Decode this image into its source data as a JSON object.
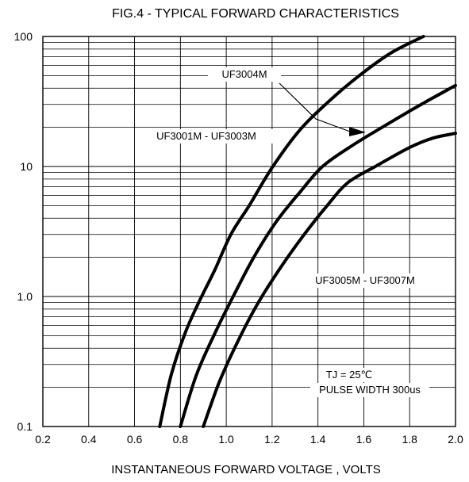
{
  "chart_data": {
    "type": "line",
    "title": "FIG.4 - TYPICAL FORWARD CHARACTERISTICS",
    "xlabel": "INSTANTANEOUS FORWARD VOLTAGE , VOLTS",
    "ylabel": "",
    "x_scale": "linear",
    "y_scale": "log",
    "xlim": [
      0.2,
      2.0
    ],
    "ylim": [
      0.1,
      100
    ],
    "grid": true,
    "x_ticks": [
      "0.2",
      "0.4",
      "0.6",
      "0.8",
      "1.0",
      "1.2",
      "1.4",
      "1.6",
      "1.8",
      "2.0"
    ],
    "y_ticks": [
      "0.1",
      "1.0",
      "10",
      "100"
    ],
    "series": [
      {
        "name": "UF3004M",
        "x": [
          0.71,
          0.76,
          0.82,
          0.88,
          0.95,
          1.02,
          1.1,
          1.2,
          1.32,
          1.45,
          1.58,
          1.72,
          1.86
        ],
        "y": [
          0.1,
          0.25,
          0.52,
          0.9,
          1.6,
          3.0,
          5.0,
          9.8,
          19.0,
          32.0,
          50.0,
          75.0,
          100.0
        ]
      },
      {
        "name": "UF3001M - UF3003M",
        "x": [
          0.8,
          0.87,
          0.95,
          1.03,
          1.12,
          1.22,
          1.32,
          1.42,
          1.55,
          1.7,
          1.85,
          2.0
        ],
        "y": [
          0.1,
          0.25,
          0.52,
          1.0,
          2.0,
          3.8,
          6.3,
          10.0,
          14.5,
          21.0,
          30.0,
          42.0
        ]
      },
      {
        "name": "UF3005M - UF3007M",
        "x": [
          0.9,
          0.97,
          1.05,
          1.14,
          1.24,
          1.34,
          1.44,
          1.53,
          1.65,
          1.8,
          1.9,
          2.0
        ],
        "y": [
          0.1,
          0.22,
          0.45,
          0.9,
          1.7,
          3.0,
          5.0,
          7.5,
          10.0,
          14.0,
          16.5,
          18.0
        ]
      }
    ],
    "annotations": [
      "UF3004M",
      "UF3001M - UF3003M",
      "UF3005M - UF3007M",
      "TJ = 25℃",
      "PULSE WIDTH 300us"
    ],
    "colors": {
      "line": "#000000",
      "grid": "#000000",
      "background": "#ffffff"
    }
  }
}
